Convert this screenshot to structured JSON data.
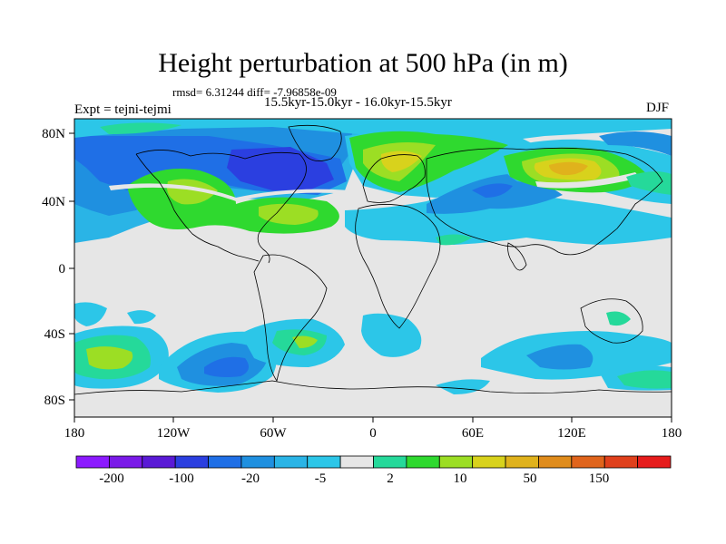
{
  "title": "Height perturbation at 500 hPa (in m)",
  "stats_line": "rmsd= 6.31244 diff= -7.96858e-09",
  "periods": "15.5kyr-15.0kyr - 16.0kyr-15.5kyr",
  "experiment": "Expt = tejni-tejmi",
  "season": "DJF",
  "lat_ticks": [
    "80N",
    "40N",
    "0",
    "40S",
    "80S"
  ],
  "lon_ticks": [
    "180",
    "120W",
    "60W",
    "0",
    "60E",
    "120E",
    "180"
  ],
  "colorbar": {
    "colors": [
      "#8c1aff",
      "#7a1ae8",
      "#5a1ad6",
      "#2b3fe0",
      "#1f6fe6",
      "#1f90e0",
      "#2ab4e6",
      "#2cc6e8",
      "#e6e6e6",
      "#25d99a",
      "#2fd92f",
      "#9cde24",
      "#d8d21c",
      "#e0b21c",
      "#e08c1c",
      "#e0641c",
      "#e0401c",
      "#e61c1c"
    ],
    "labels": [
      "-200",
      "-100",
      "-20",
      "-5",
      "2",
      "10",
      "50",
      "150"
    ]
  },
  "palette": {
    "neutral": "#e6e6e6",
    "cyan": "#2cc6e8",
    "light_blue": "#2ab4e6",
    "blue": "#1f90e0",
    "dark_blue": "#1f6fe6",
    "deep_blue": "#2b3fe0",
    "teal": "#25d99a",
    "green": "#2fd92f",
    "lime": "#9cde24",
    "yellow": "#d8d21c",
    "orange": "#e0b21c"
  }
}
